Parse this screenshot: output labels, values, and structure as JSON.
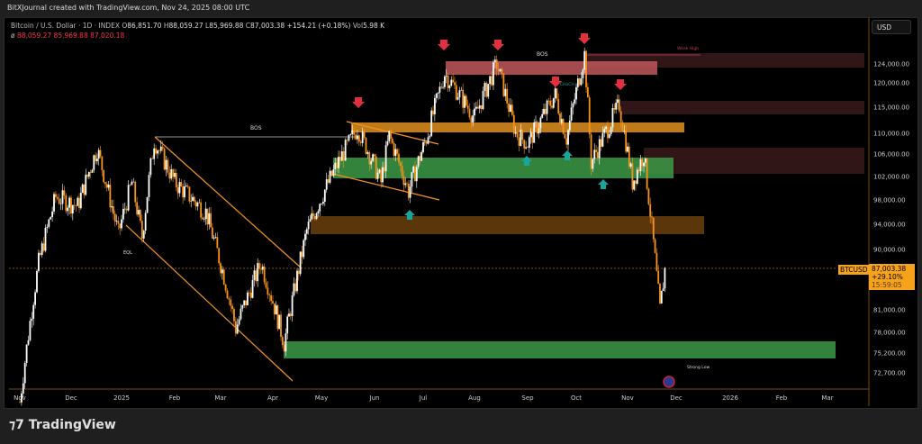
{
  "header": {
    "caption": "BitXJournal created with TradingView.com, Nov 24, 2025 08:00 UTC"
  },
  "legend": {
    "symbol": "Bitcoin / U.S. Dollar · 1D · INDEX",
    "o_label": "O",
    "open": "86,851.70",
    "h_label": "H",
    "high": "88,059.27",
    "l_label": "L",
    "low": "85,969.88",
    "c_label": "C",
    "close": "87,003.38",
    "change": "+154.21 (+0.18%)",
    "vol_label": "Vol",
    "vol": "5.98 K",
    "line2_icon": "ø",
    "ind1": "88,059.27",
    "ind2": "85,969.88",
    "ind3": "87,020.18"
  },
  "currency_button": "USD",
  "price_axis": {
    "ticks": [
      "124,000.00",
      "120,000.00",
      "115,000.00",
      "110,000.00",
      "106,000.00",
      "102,000.00",
      "98,000.00",
      "94,000.00",
      "90,000.00",
      "81,000.00",
      "78,000.00",
      "75,200.00",
      "72,700.00"
    ],
    "tick_values": [
      124000,
      120000,
      115000,
      110000,
      106000,
      102000,
      98000,
      94000,
      90000,
      81000,
      78000,
      75200,
      72700
    ]
  },
  "time_axis": {
    "ticks": [
      "Nov",
      "Dec",
      "2025",
      "Feb",
      "Mar",
      "Apr",
      "May",
      "Jun",
      "Jul",
      "Aug",
      "Sep",
      "Oct",
      "Nov",
      "Dec",
      "2026",
      "Feb",
      "Mar"
    ]
  },
  "last_price": {
    "symbol": "BTCUSD",
    "price": "87,003.38",
    "change_pct": "+29.10%",
    "countdown": "15:59:05",
    "color": "#f7a21b"
  },
  "annotations": {
    "bos1": "BOS",
    "bos2": "BOS",
    "eql": "EQL",
    "weak_high": "Weak High",
    "strong_low": "Strong Low",
    "choch": "CHoCH"
  },
  "price_path": [
    [
      "2024-11-01",
      69000
    ],
    [
      "2024-11-12",
      88000
    ],
    [
      "2024-11-22",
      98500
    ],
    [
      "2024-12-05",
      97000
    ],
    [
      "2024-12-17",
      107000
    ],
    [
      "2024-12-30",
      92500
    ],
    [
      "2025-01-07",
      101000
    ],
    [
      "2025-01-13",
      92000
    ],
    [
      "2025-01-20",
      108500
    ],
    [
      "2025-02-01",
      101000
    ],
    [
      "2025-02-20",
      96000
    ],
    [
      "2025-03-03",
      86000
    ],
    [
      "2025-03-10",
      78500
    ],
    [
      "2025-03-25",
      88000
    ],
    [
      "2025-04-08",
      76500
    ],
    [
      "2025-04-22",
      93000
    ],
    [
      "2025-05-10",
      104000
    ],
    [
      "2025-05-22",
      111000
    ],
    [
      "2025-06-05",
      101000
    ],
    [
      "2025-06-10",
      109500
    ],
    [
      "2025-06-22",
      99500
    ],
    [
      "2025-07-03",
      109000
    ],
    [
      "2025-07-14",
      122000
    ],
    [
      "2025-07-25",
      116500
    ],
    [
      "2025-08-01",
      113000
    ],
    [
      "2025-08-14",
      124000
    ],
    [
      "2025-08-25",
      110000
    ],
    [
      "2025-09-01",
      108000
    ],
    [
      "2025-09-18",
      117500
    ],
    [
      "2025-09-25",
      109000
    ],
    [
      "2025-10-06",
      126000
    ],
    [
      "2025-10-10",
      104500
    ],
    [
      "2025-10-27",
      115500
    ],
    [
      "2025-11-04",
      101000
    ],
    [
      "2025-11-11",
      106000
    ],
    [
      "2025-11-21",
      81000
    ],
    [
      "2025-11-24",
      87003
    ]
  ],
  "colors": {
    "up": "#ffffff",
    "down": "#f7931a",
    "supply": "#c0585c",
    "demand": "#3d9a46",
    "orange_zone": "#e0901f",
    "arrow_red": "#e03040",
    "arrow_green": "#1aa59a"
  }
}
